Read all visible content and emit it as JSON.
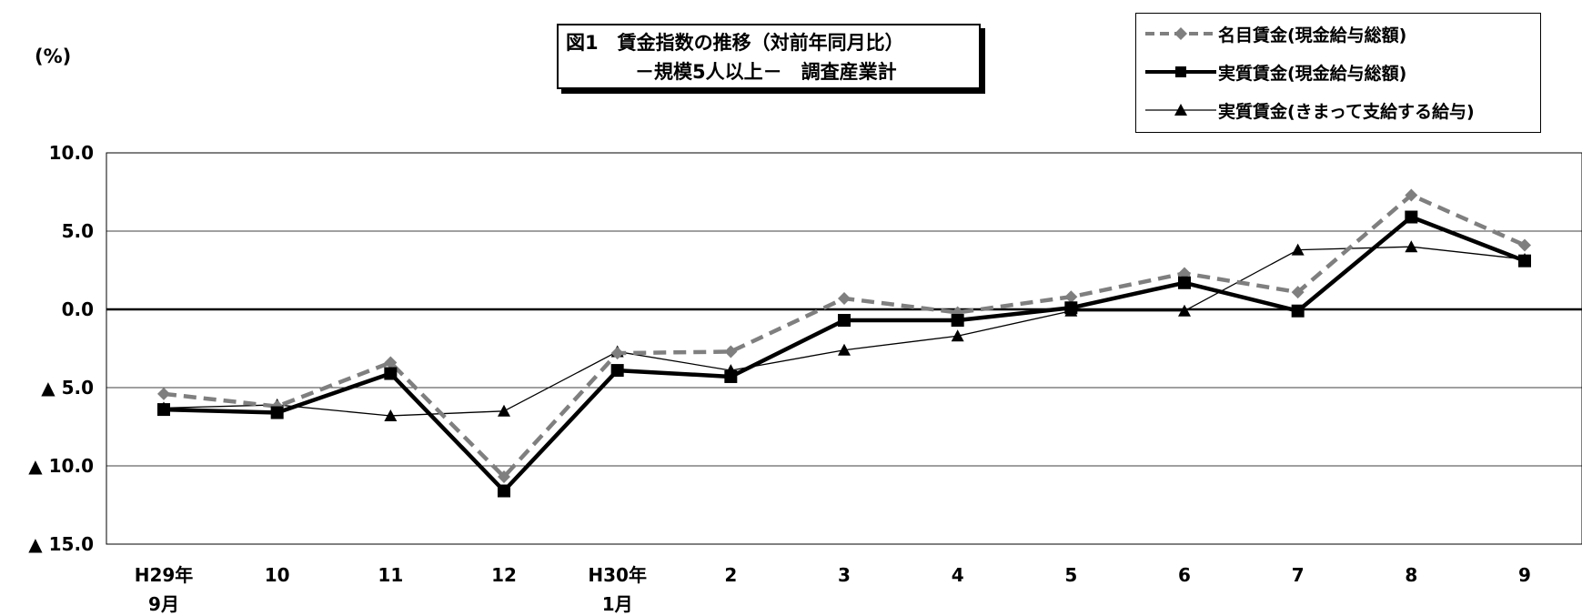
{
  "title": {
    "line1": "図1　賃金指数の推移（対前年同月比）",
    "line2": "－規模5人以上－　調査産業計"
  },
  "chart_data": {
    "type": "line",
    "ylabel": "(%)",
    "ylim": [
      -15,
      10
    ],
    "yticks": [
      10,
      5,
      0,
      -5,
      -10,
      -15
    ],
    "ytick_labels": [
      "10.0",
      "5.0",
      "0.0",
      "▲ 5.0",
      "▲ 10.0",
      "▲ 15.0"
    ],
    "categories": [
      "H29年\n9月",
      "10",
      "11",
      "12",
      "H30年\n1月",
      "2",
      "3",
      "4",
      "5",
      "6",
      "7",
      "8",
      "9"
    ],
    "grid": true,
    "legend_position": "top-right",
    "series": [
      {
        "name": "名目賃金(現金給与総額)",
        "style": "dashed",
        "marker": "diamond",
        "color": "#7f7f7f",
        "values": [
          -5.4,
          -6.2,
          -3.4,
          -10.7,
          -2.8,
          -2.7,
          0.7,
          -0.2,
          0.8,
          2.3,
          1.1,
          7.3,
          4.1
        ]
      },
      {
        "name": "実質賃金(現金給与総額)",
        "style": "solid-thick",
        "marker": "square",
        "color": "#000000",
        "values": [
          -6.4,
          -6.6,
          -4.1,
          -11.6,
          -3.9,
          -4.3,
          -0.7,
          -0.7,
          0.1,
          1.7,
          -0.1,
          5.9,
          3.1
        ]
      },
      {
        "name": "実質賃金(きまって支給する給与)",
        "style": "solid-thin",
        "marker": "triangle",
        "color": "#000000",
        "values": [
          -6.3,
          -6.1,
          -6.8,
          -6.5,
          -2.7,
          -3.9,
          -2.6,
          -1.7,
          -0.1,
          -0.1,
          3.8,
          4.0,
          3.2
        ]
      }
    ]
  }
}
